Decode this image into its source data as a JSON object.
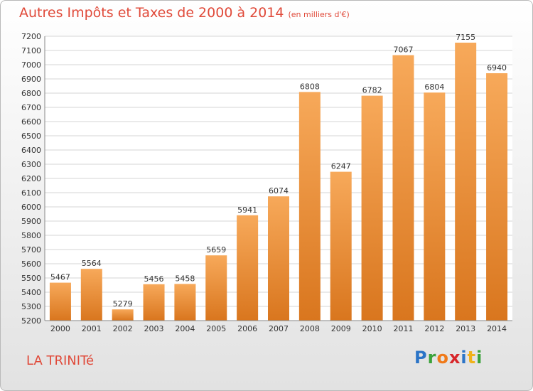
{
  "title": "Autres Impôts et Taxes de 2000 à 2014",
  "subtitle": "(en milliers d'€)",
  "location": "LA TRINITé",
  "logo": {
    "letters": [
      "P",
      "r",
      "o",
      "x",
      "i",
      "t",
      "i"
    ],
    "colors": [
      "#2b74c7",
      "#3aa23a",
      "#f07a1a",
      "#d7262a",
      "#2b74c7",
      "#f0b21a",
      "#3aa23a"
    ]
  },
  "colors": {
    "bar_top": "#f7a95a",
    "bar_bottom": "#d9761e",
    "title": "#e04a3a",
    "grid": "#d4d4d4"
  },
  "chart_data": {
    "type": "bar",
    "title": "Autres Impôts et Taxes de 2000 à 2014",
    "ylabel": "en milliers d'€",
    "categories": [
      "2000",
      "2001",
      "2002",
      "2003",
      "2004",
      "2005",
      "2006",
      "2007",
      "2008",
      "2009",
      "2010",
      "2011",
      "2012",
      "2013",
      "2014"
    ],
    "values": [
      5467,
      5564,
      5279,
      5456,
      5458,
      5659,
      5941,
      6074,
      6808,
      6247,
      6782,
      7067,
      6804,
      7155,
      6940
    ],
    "ylim": [
      5200,
      7200
    ],
    "yticks": [
      5200,
      5300,
      5400,
      5500,
      5600,
      5700,
      5800,
      5900,
      6000,
      6100,
      6200,
      6300,
      6400,
      6500,
      6600,
      6700,
      6800,
      6900,
      7000,
      7100,
      7200
    ],
    "grid": true
  }
}
